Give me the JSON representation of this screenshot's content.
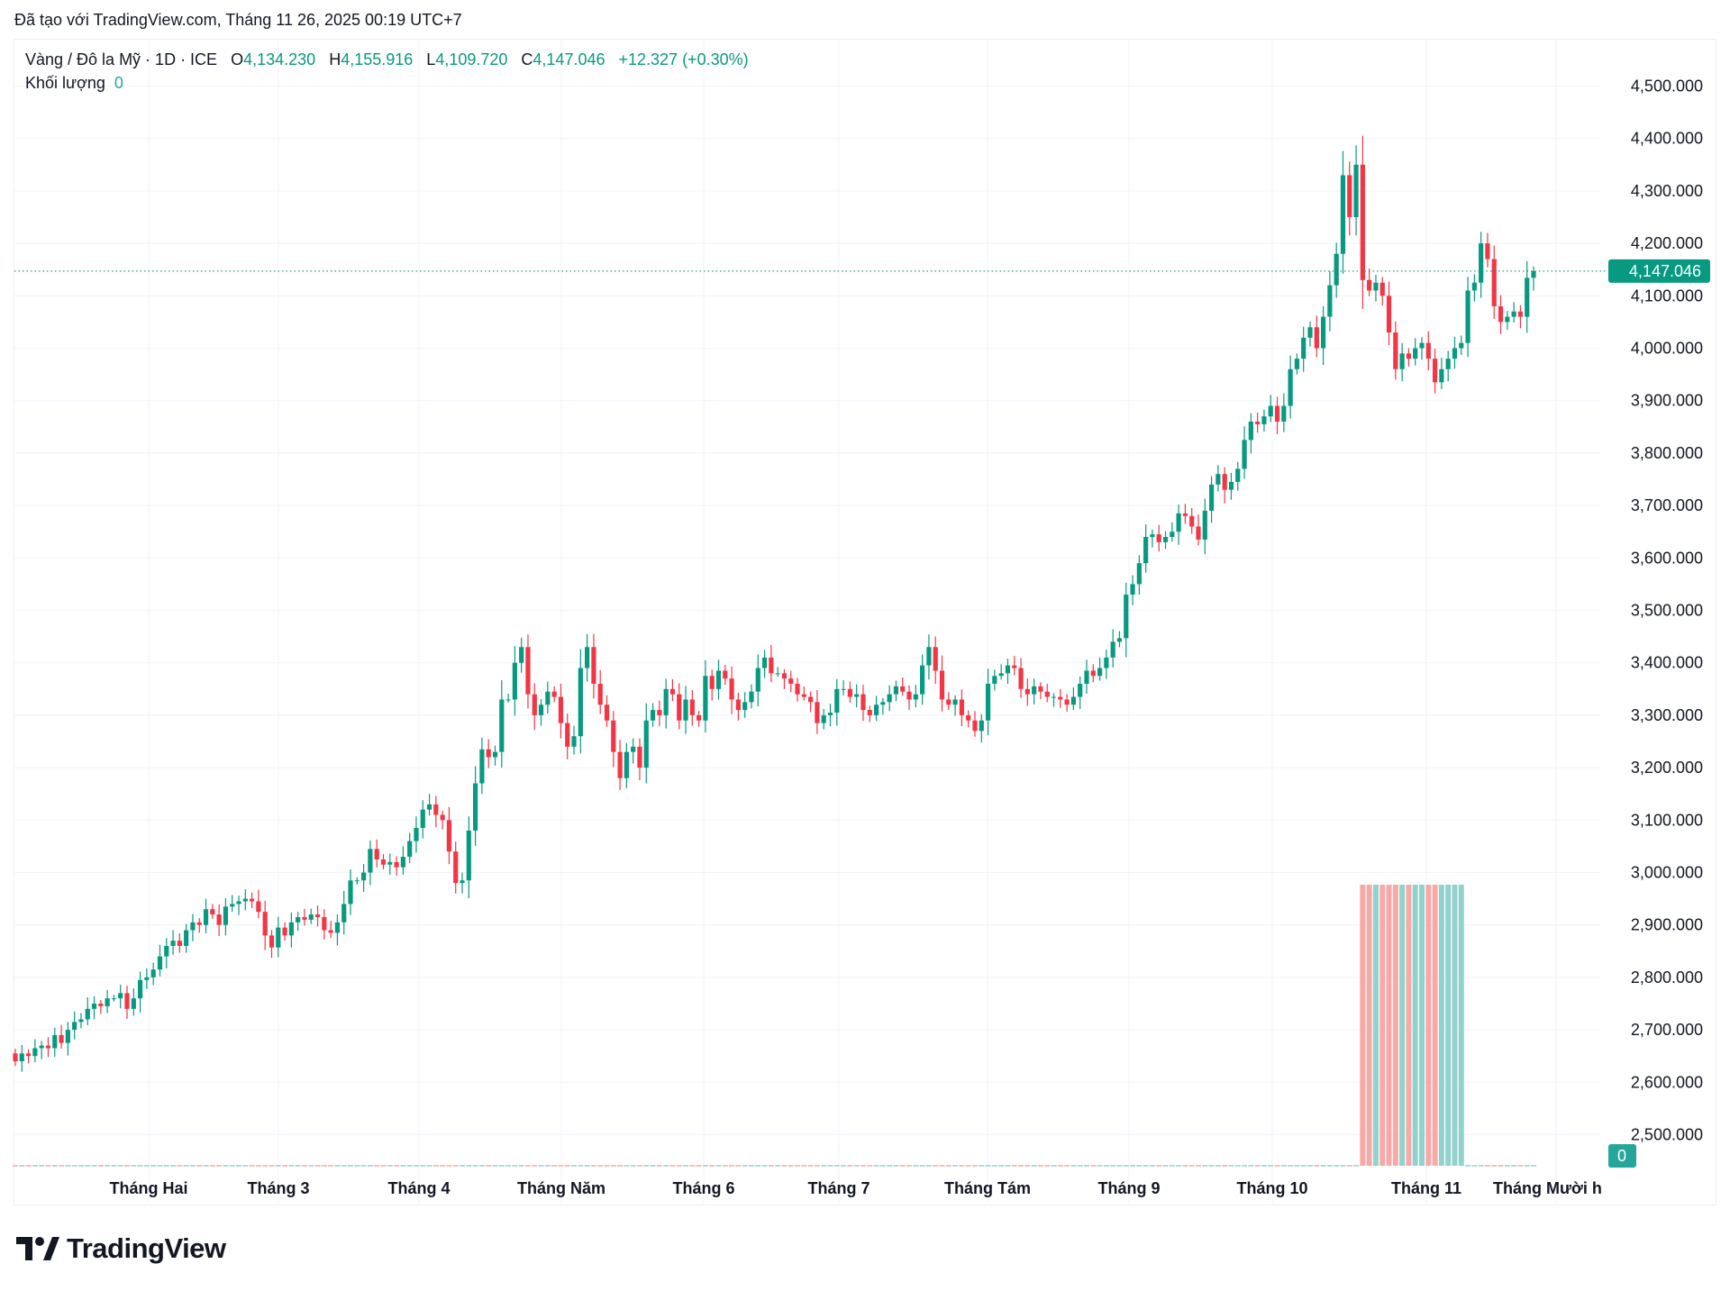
{
  "header": {
    "created_text": "Đã tạo với TradingView.com, Tháng 11 26, 2025 00:19 UTC+7"
  },
  "legend": {
    "symbol": "Vàng / Đô la Mỹ · 1D · ICE",
    "o_label": "O",
    "o_value": "4,134.230",
    "h_label": "H",
    "h_value": "4,155.916",
    "l_label": "L",
    "l_value": "4,109.720",
    "c_label": "C",
    "c_value": "4,147.046",
    "change": "+12.327 (+0.30%)",
    "volume_label": "Khối lượng",
    "volume_value": "0"
  },
  "branding": {
    "logo_text": "TradingView"
  },
  "chart_data": {
    "type": "candlestick",
    "title": "Vàng / Đô la Mỹ · 1D · ICE",
    "xlabel": "",
    "ylabel": "",
    "ylim": [
      2440,
      4560
    ],
    "y_ticks": [
      "4,500.000",
      "4,400.000",
      "4,300.000",
      "4,200.000",
      "4,100.000",
      "4,000.000",
      "3,900.000",
      "3,800.000",
      "3,700.000",
      "3,600.000",
      "3,500.000",
      "3,400.000",
      "3,300.000",
      "3,200.000",
      "3,100.000",
      "3,000.000",
      "2,900.000",
      "2,800.000",
      "2,700.000",
      "2,600.000",
      "2,500.000"
    ],
    "y_tick_values": [
      4500,
      4400,
      4300,
      4200,
      4100,
      4000,
      3900,
      3800,
      3700,
      3600,
      3500,
      3400,
      3300,
      3200,
      3100,
      3000,
      2900,
      2800,
      2700,
      2600,
      2500
    ],
    "x_ticks": [
      "Tháng Hai",
      "Tháng 3",
      "Tháng 4",
      "Tháng Năm",
      "Tháng 6",
      "Tháng 7",
      "Tháng Tám",
      "Tháng 9",
      "Tháng 10",
      "Tháng 11",
      "Tháng Mười h"
    ],
    "first_open": 2655,
    "closes": [
      2640,
      2655,
      2650,
      2665,
      2670,
      2665,
      2690,
      2675,
      2700,
      2715,
      2720,
      2740,
      2750,
      2745,
      2760,
      2760,
      2770,
      2740,
      2760,
      2795,
      2800,
      2815,
      2840,
      2860,
      2870,
      2860,
      2890,
      2905,
      2900,
      2930,
      2920,
      2900,
      2935,
      2940,
      2945,
      2950,
      2945,
      2925,
      2880,
      2857,
      2895,
      2880,
      2905,
      2915,
      2910,
      2920,
      2915,
      2890,
      2885,
      2905,
      2940,
      2985,
      2985,
      3000,
      3045,
      3025,
      3015,
      3020,
      3010,
      3030,
      3060,
      3085,
      3120,
      3130,
      3110,
      3100,
      3040,
      2980,
      2985,
      3080,
      3170,
      3235,
      3220,
      3230,
      3330,
      3330,
      3400,
      3430,
      3340,
      3300,
      3320,
      3345,
      3335,
      3285,
      3240,
      3260,
      3390,
      3430,
      3360,
      3320,
      3290,
      3230,
      3180,
      3230,
      3240,
      3200,
      3290,
      3310,
      3300,
      3350,
      3340,
      3290,
      3330,
      3300,
      3290,
      3375,
      3350,
      3385,
      3370,
      3330,
      3310,
      3325,
      3345,
      3390,
      3410,
      3380,
      3380,
      3370,
      3360,
      3340,
      3335,
      3325,
      3285,
      3300,
      3305,
      3350,
      3350,
      3335,
      3340,
      3310,
      3300,
      3320,
      3325,
      3340,
      3355,
      3345,
      3330,
      3340,
      3395,
      3430,
      3385,
      3330,
      3320,
      3330,
      3300,
      3290,
      3270,
      3290,
      3360,
      3375,
      3380,
      3395,
      3390,
      3350,
      3340,
      3355,
      3345,
      3335,
      3335,
      3330,
      3320,
      3335,
      3360,
      3385,
      3375,
      3390,
      3410,
      3440,
      3447,
      3530,
      3550,
      3590,
      3640,
      3645,
      3630,
      3640,
      3650,
      3685,
      3680,
      3660,
      3635,
      3690,
      3740,
      3760,
      3730,
      3745,
      3770,
      3825,
      3860,
      3855,
      3870,
      3890,
      3860,
      3890,
      3960,
      3980,
      4020,
      4040,
      4000,
      4060,
      4120,
      4180,
      4330,
      4250,
      4350,
      4130,
      4110,
      4125,
      4100,
      4030,
      3960,
      3990,
      3980,
      4000,
      4010,
      3980,
      3935,
      3960,
      3980,
      4000,
      4010,
      4110,
      4125,
      4200,
      4170,
      4080,
      4050,
      4060,
      4070,
      4060,
      4134.23,
      4147.046
    ],
    "last": {
      "open": 4134.23,
      "high": 4155.916,
      "low": 4109.72,
      "close": 4147.046,
      "label": "4,147.046"
    },
    "volume_axis_label": "0",
    "colors": {
      "up": "#089981",
      "down": "#f23645",
      "up_volume": "#92d2cc",
      "down_volume": "#f7a9a7",
      "grid": "#f0f3fa",
      "price_line": "#089981"
    },
    "grid": true
  }
}
